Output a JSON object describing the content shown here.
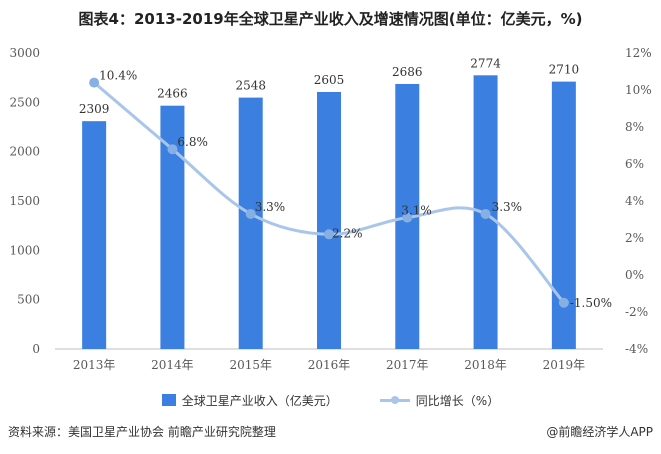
{
  "title": "图表4：2013-2019年全球卫星产业收入及增速情况图(单位：亿美元，%)",
  "source": "资料来源：美国卫星产业协会 前瞻产业研究院整理",
  "credit": "@前瞻经济学人APP",
  "colors": {
    "bar": "#3b7fe0",
    "line": "#a9c6ea",
    "point": "#86b0e3"
  },
  "chart_data": {
    "type": "bar",
    "categories": [
      "2013年",
      "2014年",
      "2015年",
      "2016年",
      "2017年",
      "2018年",
      "2019年"
    ],
    "series": [
      {
        "name": "全球卫星产业收入（亿美元）",
        "type": "bar",
        "axis": "left",
        "values": [
          2309,
          2466,
          2548,
          2605,
          2686,
          2774,
          2710
        ],
        "labels": [
          "2309",
          "2466",
          "2548",
          "2605",
          "2686",
          "2774",
          "2710"
        ]
      },
      {
        "name": "同比增长（%）",
        "type": "line",
        "axis": "right",
        "values": [
          10.4,
          6.8,
          3.3,
          2.2,
          3.1,
          3.3,
          -1.5
        ],
        "labels": [
          "10.4%",
          "6.8%",
          "3.3%",
          "2.2%",
          "3.1%",
          "3.3%",
          "-1.50%"
        ]
      }
    ],
    "y_left": {
      "min": 0,
      "max": 3000,
      "ticks": [
        "0",
        "500",
        "1000",
        "1500",
        "2000",
        "2500",
        "3000"
      ]
    },
    "y_right": {
      "min": -4,
      "max": 12,
      "ticks": [
        "-4%",
        "-2%",
        "0%",
        "2%",
        "4%",
        "6%",
        "8%",
        "10%",
        "12%"
      ]
    },
    "legend_position": "bottom",
    "grid": false
  }
}
